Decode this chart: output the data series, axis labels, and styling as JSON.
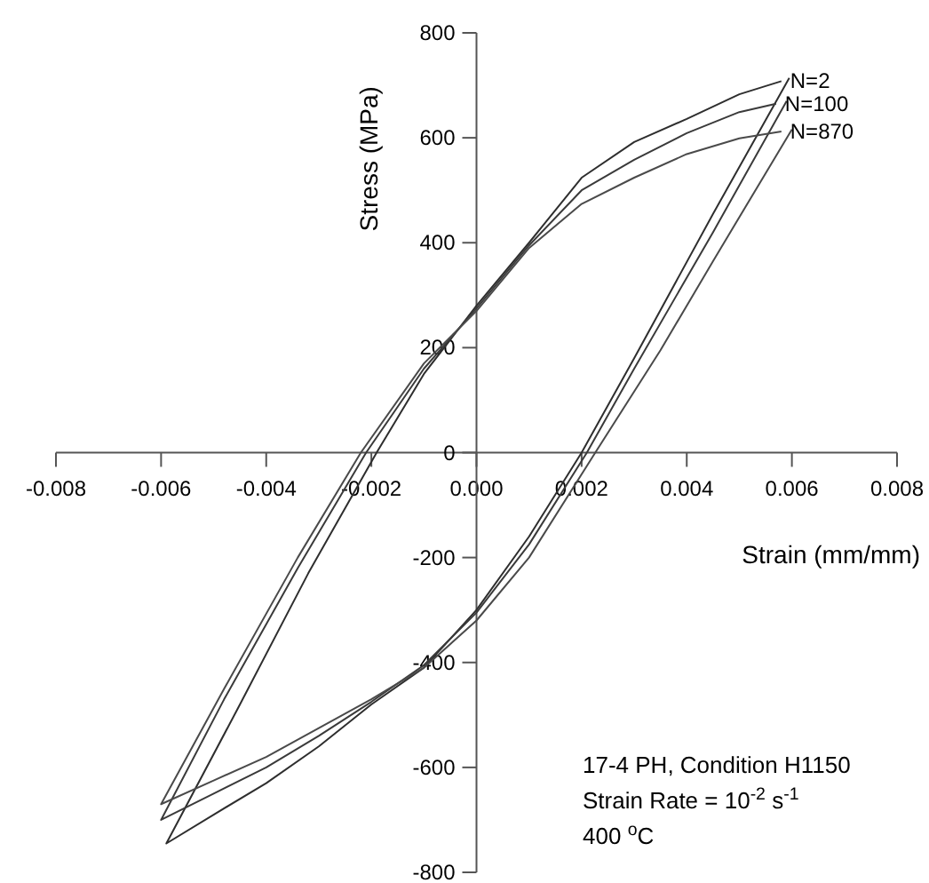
{
  "chart_data": {
    "type": "line",
    "xlabel": "Strain (mm/mm)",
    "ylabel": "Stress (MPa)",
    "xlim": [
      -0.008,
      0.008
    ],
    "xticks": [
      {
        "value": -0.008,
        "label": "-0.008"
      },
      {
        "value": -0.006,
        "label": "-0.006"
      },
      {
        "value": -0.004,
        "label": "-0.004"
      },
      {
        "value": -0.002,
        "label": "-0.002"
      },
      {
        "value": 0,
        "label": "0.000"
      },
      {
        "value": 0.002,
        "label": "0.002"
      },
      {
        "value": 0.004,
        "label": "0.004"
      },
      {
        "value": 0.006,
        "label": "0.006"
      },
      {
        "value": 0.008,
        "label": "0.008"
      }
    ],
    "ylim": [
      -800,
      800
    ],
    "yticks": [
      -800,
      -600,
      -400,
      -200,
      0,
      200,
      400,
      600,
      800
    ],
    "grid": false,
    "marker": "none",
    "line_style": "solid",
    "series": [
      {
        "name": "N=2",
        "color": "#2e2e2e",
        "x": [
          0.00595,
          0.0045,
          0.003,
          0.002,
          0.001,
          0,
          -0.001,
          -0.002,
          -0.003,
          -0.004,
          -0.005,
          -0.0059,
          -0.0045,
          -0.0032,
          -0.0019,
          -0.001,
          0,
          0.001,
          0.002,
          0.003,
          0.004,
          0.005,
          0.0058
        ],
        "values": [
          714,
          455,
          180,
          0,
          -160,
          -300,
          -410,
          -480,
          -560,
          -630,
          -690,
          -745,
          -480,
          -230,
          0,
          150,
          280,
          400,
          524,
          592,
          636,
          683,
          708
        ]
      },
      {
        "name": "N=100",
        "color": "#3a3a3a",
        "x": [
          0.0059,
          0.0045,
          0.003,
          0.0021,
          0.001,
          0,
          -0.001,
          -0.002,
          -0.003,
          -0.004,
          -0.005,
          -0.006,
          -0.0048,
          -0.0034,
          -0.0021,
          -0.001,
          0,
          0.001,
          0.002,
          0.003,
          0.004,
          0.005,
          0.0057
        ],
        "values": [
          670,
          420,
          160,
          0,
          -175,
          -305,
          -405,
          -475,
          -540,
          -600,
          -650,
          -700,
          -470,
          -220,
          0,
          160,
          275,
          395,
          500,
          558,
          609,
          649,
          665
        ]
      },
      {
        "name": "N=870",
        "color": "#4a4a4a",
        "x": [
          0.006,
          0.0045,
          0.0035,
          0.00226,
          0.001,
          0,
          -0.001,
          -0.002,
          -0.003,
          -0.004,
          -0.005,
          -0.006,
          -0.0048,
          -0.0034,
          -0.0022,
          -0.001,
          0,
          0.001,
          0.002,
          0.003,
          0.004,
          0.005,
          0.0058
        ],
        "values": [
          616,
          365,
          195,
          0,
          -200,
          -320,
          -410,
          -470,
          -525,
          -580,
          -625,
          -670,
          -450,
          -200,
          0,
          170,
          270,
          390,
          474,
          524,
          569,
          599,
          612
        ]
      }
    ],
    "annotations": [
      "17-4 PH, Condition H1150",
      "Strain Rate = 10$^{-2}$ s$^{-1}$",
      "400 $^{o}$C"
    ]
  }
}
